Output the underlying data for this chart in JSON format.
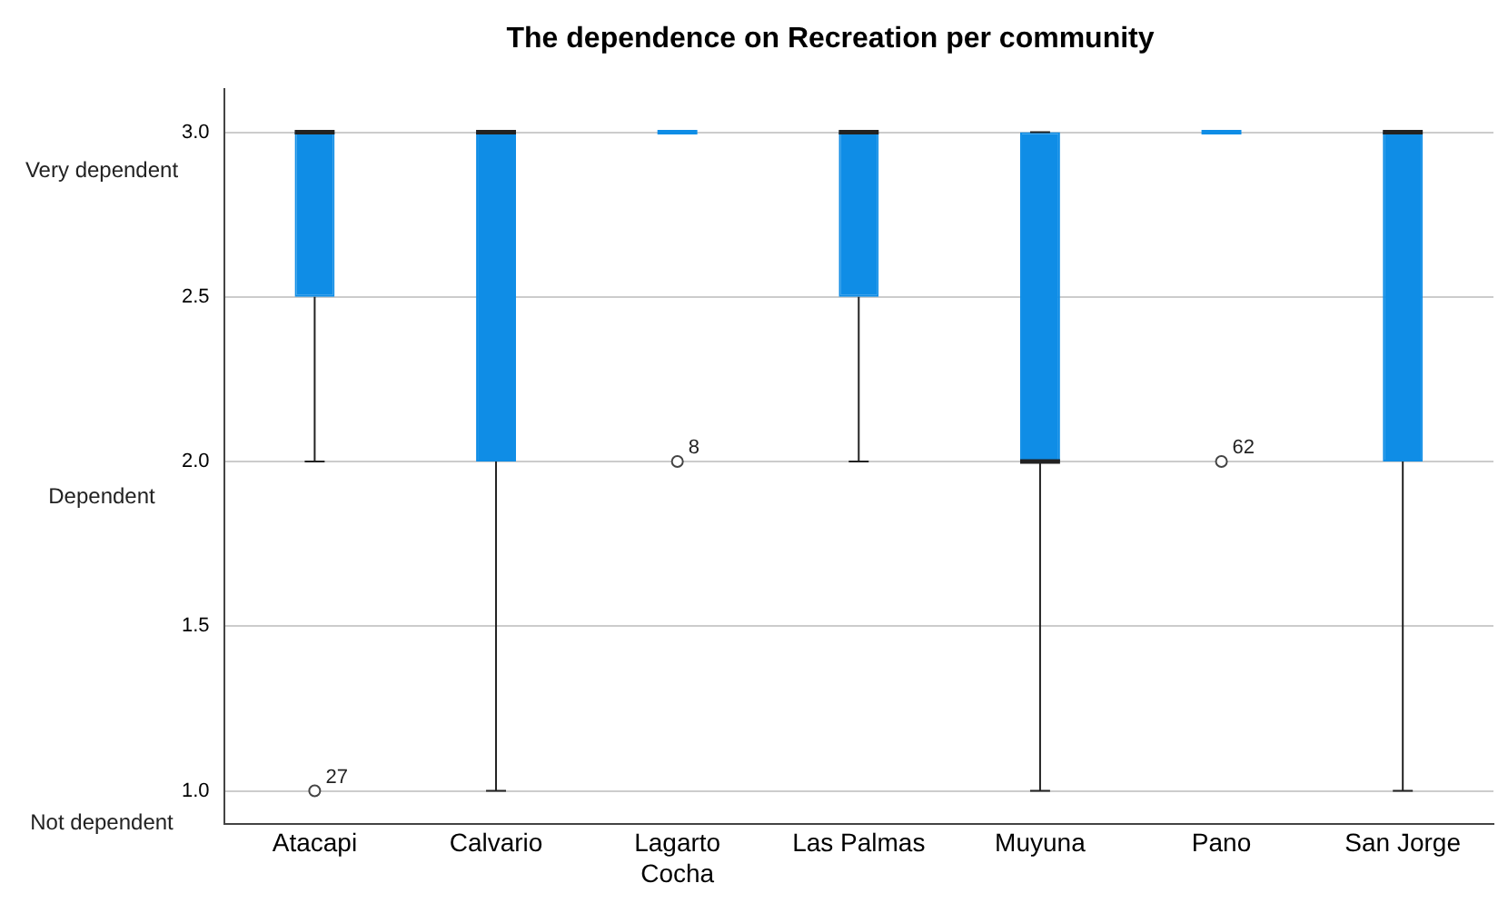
{
  "chart_data": {
    "type": "box",
    "title": "The dependence on Recreation per community",
    "categories": [
      "Atacapi",
      "Calvario",
      "Lagarto Cocha",
      "Las Palmas",
      "Muyuna",
      "Pano",
      "San Jorge"
    ],
    "boxes": [
      {
        "low": 2,
        "q1": 2.5,
        "median": 3,
        "q3": 3,
        "high": 3,
        "outliers": [
          1
        ]
      },
      {
        "low": 1,
        "q1": 2,
        "median": 3,
        "q3": 3,
        "high": 3
      },
      {
        "low": 3,
        "q1": 3,
        "median": 3,
        "q3": 3,
        "high": 3,
        "outliers": [
          2
        ]
      },
      {
        "low": 2,
        "q1": 2.5,
        "median": 3,
        "q3": 3,
        "high": 3
      },
      {
        "low": 1,
        "q1": 2,
        "median": 2,
        "q3": 3,
        "high": 3
      },
      {
        "low": 3,
        "q1": 3,
        "median": 3,
        "q3": 3,
        "high": 3,
        "outliers": [
          2
        ]
      },
      {
        "low": 1,
        "q1": 2,
        "median": 3,
        "q3": 3,
        "high": 3
      }
    ],
    "color": "#0f8de6",
    "ylim": [
      0.9,
      3.13
    ],
    "yticks": [
      {
        "value": 1,
        "label": "1.0"
      },
      {
        "value": 1.5,
        "label": "1.5"
      },
      {
        "value": 2,
        "label": "2.0"
      },
      {
        "value": 2.5,
        "label": "2.5"
      },
      {
        "value": 3,
        "label": "3.0"
      }
    ],
    "grid": "y",
    "legend": false,
    "marker": "circle",
    "annotations": [
      "Very dependent",
      "Dependent",
      "Not dependent",
      "27",
      "8",
      "62"
    ]
  }
}
